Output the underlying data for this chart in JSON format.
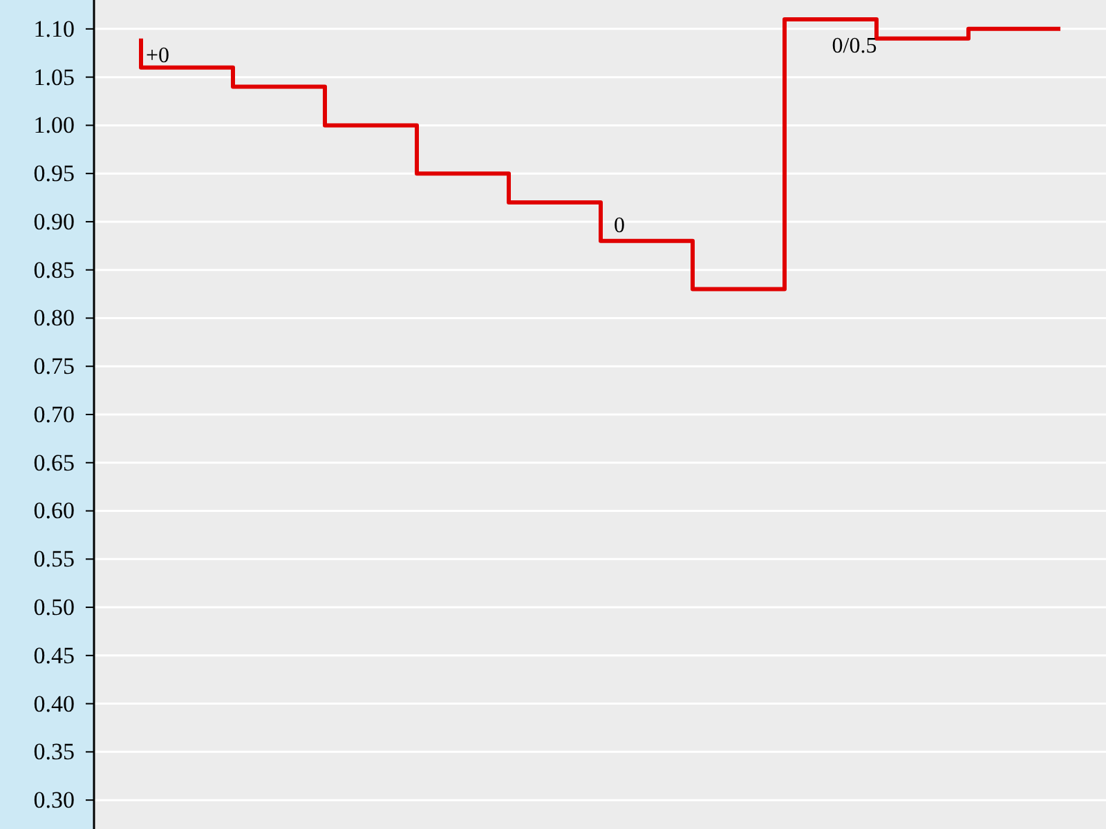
{
  "chart_data": {
    "type": "step",
    "categories": [
      null,
      null,
      null,
      null,
      null,
      null,
      null,
      null,
      null,
      null,
      null
    ],
    "series": [
      {
        "color": "#e00000",
        "values": [
          1.09,
          1.06,
          1.04,
          1.0,
          0.95,
          0.92,
          0.88,
          0.83,
          1.11,
          1.09,
          1.1
        ]
      }
    ],
    "annotations": [
      "+0",
      "0",
      "0/0.5"
    ],
    "ylim": [
      0.27,
      1.13
    ],
    "yticks": [
      {
        "value": 0.3,
        "label": "0.30"
      },
      {
        "value": 0.35,
        "label": "0.35"
      },
      {
        "value": 0.4,
        "label": "0.40"
      },
      {
        "value": 0.45,
        "label": "0.45"
      },
      {
        "value": 0.5,
        "label": "0.50"
      },
      {
        "value": 0.55,
        "label": "0.55"
      },
      {
        "value": 0.6,
        "label": "0.60"
      },
      {
        "value": 0.65,
        "label": "0.65"
      },
      {
        "value": 0.7,
        "label": "0.70"
      },
      {
        "value": 0.75,
        "label": "0.75"
      },
      {
        "value": 0.8,
        "label": "0.80"
      },
      {
        "value": 0.85,
        "label": "0.85"
      },
      {
        "value": 0.9,
        "label": "0.90"
      },
      {
        "value": 0.95,
        "label": "0.95"
      },
      {
        "value": 1.0,
        "label": "1.00"
      },
      {
        "value": 1.05,
        "label": "1.05"
      },
      {
        "value": 1.1,
        "label": "1.10"
      }
    ],
    "grid": "y",
    "tick_labels": "y",
    "marker": "none",
    "line_style": "solid"
  }
}
